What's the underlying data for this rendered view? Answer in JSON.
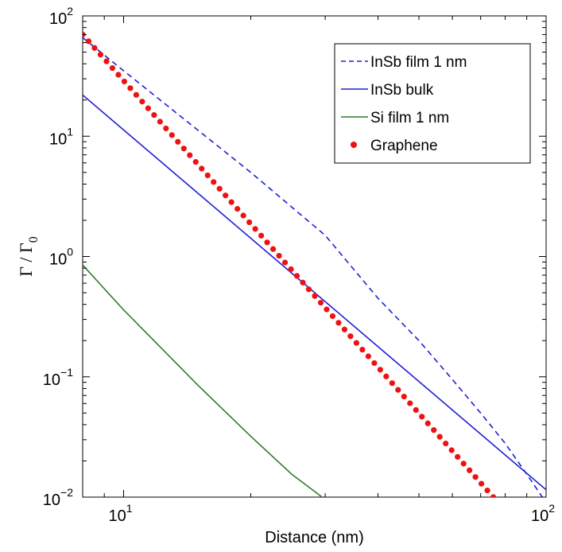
{
  "chart_data": {
    "type": "line",
    "title": "",
    "xlabel": "Distance (nm)",
    "ylabel": {
      "main": "Γ / Γ",
      "sub": "0"
    },
    "xscale": "log",
    "yscale": "log",
    "xlim": [
      8,
      100
    ],
    "ylim": [
      0.01,
      100
    ],
    "x_ticks": [
      {
        "base": "10",
        "exp": "1",
        "value": 10
      },
      {
        "base": "10",
        "exp": "2",
        "value": 100
      }
    ],
    "y_ticks": [
      {
        "base": "10",
        "exp": "−2",
        "value": 0.01
      },
      {
        "base": "10",
        "exp": "−1",
        "value": 0.1
      },
      {
        "base": "10",
        "exp": "0",
        "value": 1
      },
      {
        "base": "10",
        "exp": "1",
        "value": 10
      },
      {
        "base": "10",
        "exp": "2",
        "value": 100
      }
    ],
    "grid": false,
    "legend_position": "top-right",
    "series": [
      {
        "name": "InSb film 1 nm",
        "style": "dashed",
        "color": "#1f1fd6",
        "x": [
          8,
          10,
          20,
          30,
          40,
          50,
          60,
          70,
          80,
          90,
          100
        ],
        "y": [
          66,
          35,
          5.0,
          1.5,
          0.45,
          0.2,
          0.095,
          0.05,
          0.028,
          0.0155,
          0.009
        ]
      },
      {
        "name": "InSb bulk",
        "style": "solid",
        "color": "#1f1fd6",
        "x": [
          8,
          100
        ],
        "y": [
          22,
          0.0115
        ]
      },
      {
        "name": "Si film 1 nm",
        "style": "solid",
        "color": "#2e7d2e",
        "x": [
          8,
          10,
          15,
          20,
          25,
          29.5
        ],
        "y": [
          0.85,
          0.36,
          0.085,
          0.032,
          0.0155,
          0.01
        ]
      },
      {
        "name": "Graphene",
        "style": "dots",
        "color": "#ee1111",
        "x": [
          8,
          75
        ],
        "y": [
          70,
          0.01
        ]
      }
    ]
  }
}
